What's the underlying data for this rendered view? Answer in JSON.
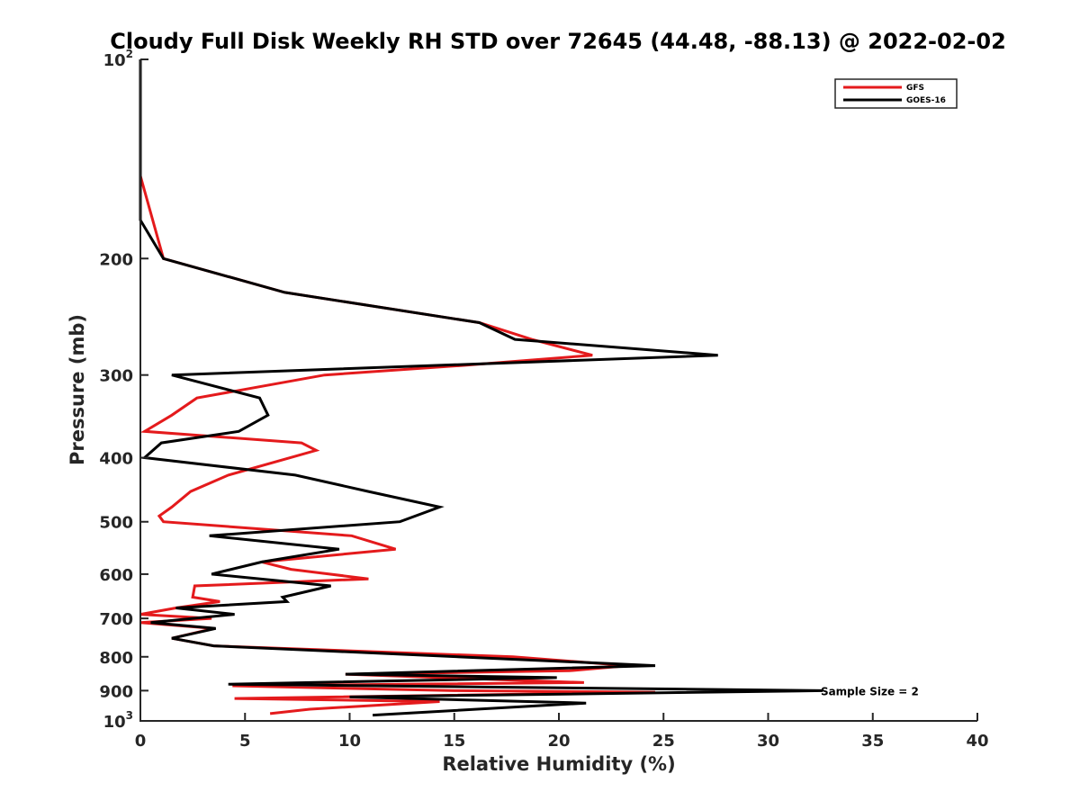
{
  "chart_data": {
    "type": "line",
    "title": "Cloudy Full Disk Weekly RH STD over 72645 (44.48, -88.13) @ 2022-02-02",
    "xlabel": "Relative Humidity (%)",
    "ylabel": "Pressure (mb)",
    "xlim": [
      0,
      40
    ],
    "ylim": [
      100,
      1000
    ],
    "y_scale": "log",
    "y_reversed": true,
    "grid": false,
    "legend_position": "top-right",
    "x_ticks": [
      "0",
      "5",
      "10",
      "15",
      "20",
      "25",
      "30",
      "35",
      "40"
    ],
    "y_ticks": [
      {
        "value": 100,
        "base": "10",
        "exp": "2"
      },
      {
        "value": 200,
        "label": "200"
      },
      {
        "value": 300,
        "label": "300"
      },
      {
        "value": 400,
        "label": "400"
      },
      {
        "value": 500,
        "label": "500"
      },
      {
        "value": 600,
        "label": "600"
      },
      {
        "value": 700,
        "label": "700"
      },
      {
        "value": 800,
        "label": "800"
      },
      {
        "value": 900,
        "label": "900"
      },
      {
        "value": 1000,
        "base": "10",
        "exp": "3"
      }
    ],
    "annotation": {
      "text": "Sample Size = 2",
      "x": 32.6,
      "y": 900
    },
    "series": [
      {
        "name": "GFS",
        "color": "#e41a1c",
        "points": [
          [
            0,
            100
          ],
          [
            0,
            150
          ],
          [
            1.1,
            200
          ],
          [
            6.9,
            225
          ],
          [
            16.2,
            250
          ],
          [
            18.7,
            265
          ],
          [
            21.6,
            280
          ],
          [
            15.5,
            290
          ],
          [
            8.8,
            300
          ],
          [
            2.7,
            325
          ],
          [
            1.5,
            345
          ],
          [
            0.2,
            365
          ],
          [
            7.7,
            380
          ],
          [
            8.4,
            390
          ],
          [
            4.2,
            425
          ],
          [
            2.4,
            450
          ],
          [
            1.5,
            475
          ],
          [
            0.9,
            490
          ],
          [
            1.1,
            500
          ],
          [
            10.1,
            525
          ],
          [
            12.2,
            550
          ],
          [
            5.8,
            575
          ],
          [
            7.2,
            590
          ],
          [
            10.9,
            610
          ],
          [
            2.6,
            625
          ],
          [
            2.5,
            650
          ],
          [
            3.8,
            660
          ],
          [
            1.7,
            675
          ],
          [
            0,
            690
          ],
          [
            3.4,
            700
          ],
          [
            0,
            710
          ],
          [
            3.5,
            725
          ],
          [
            1.5,
            750
          ],
          [
            3.5,
            770
          ],
          [
            17.8,
            800
          ],
          [
            23.3,
            825
          ],
          [
            20.5,
            840
          ],
          [
            9.8,
            850
          ],
          [
            21.2,
            875
          ],
          [
            4.4,
            885
          ],
          [
            15.0,
            900
          ],
          [
            24.6,
            905
          ],
          [
            4.5,
            925
          ],
          [
            14.3,
            935
          ],
          [
            8.1,
            960
          ],
          [
            6.2,
            975
          ]
        ]
      },
      {
        "name": "GOES-16",
        "color": "#000000",
        "points": [
          [
            0,
            100
          ],
          [
            0,
            175
          ],
          [
            1.1,
            200
          ],
          [
            6.9,
            225
          ],
          [
            16.2,
            250
          ],
          [
            17.9,
            265
          ],
          [
            27.6,
            280
          ],
          [
            1.5,
            300
          ],
          [
            5.7,
            325
          ],
          [
            6.1,
            345
          ],
          [
            4.7,
            365
          ],
          [
            1.0,
            380
          ],
          [
            0.2,
            400
          ],
          [
            7.4,
            425
          ],
          [
            10.9,
            450
          ],
          [
            14.3,
            475
          ],
          [
            12.4,
            500
          ],
          [
            3.3,
            525
          ],
          [
            9.5,
            550
          ],
          [
            5.8,
            575
          ],
          [
            3.4,
            600
          ],
          [
            9.1,
            625
          ],
          [
            6.8,
            650
          ],
          [
            7.0,
            660
          ],
          [
            1.7,
            675
          ],
          [
            4.5,
            690
          ],
          [
            0.5,
            710
          ],
          [
            3.6,
            725
          ],
          [
            1.5,
            750
          ],
          [
            3.5,
            770
          ],
          [
            24.6,
            825
          ],
          [
            9.8,
            850
          ],
          [
            19.9,
            860
          ],
          [
            4.2,
            880
          ],
          [
            32.6,
            900
          ],
          [
            10.0,
            920
          ],
          [
            21.3,
            940
          ],
          [
            11.1,
            980
          ]
        ]
      }
    ]
  }
}
